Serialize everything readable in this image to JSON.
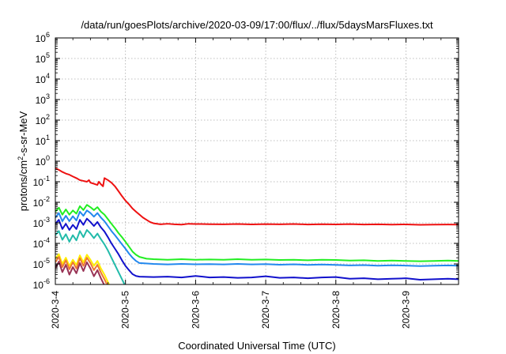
{
  "chart_data": {
    "type": "line",
    "title": "/data/run/goesPlots/archive/2020-03-09/17:00/flux/../flux/5daysMarsFluxes.txt",
    "xlabel": "Coordinated Universal Time (UTC)",
    "ylabel_parts": {
      "base": "protons/cm",
      "sup": "2",
      "rest": "-s-sr-MeV"
    },
    "y_scale": "log",
    "ylim": [
      1e-06,
      1000000.0
    ],
    "xlim_days": [
      0,
      5.75
    ],
    "x_ticks": [
      {
        "t": 0,
        "label": "2020-3-4"
      },
      {
        "t": 1,
        "label": "2020-3-5"
      },
      {
        "t": 2,
        "label": "2020-3-6"
      },
      {
        "t": 3,
        "label": "2020-3-7"
      },
      {
        "t": 4,
        "label": "2020-3-8"
      },
      {
        "t": 5,
        "label": "2020-3-9"
      }
    ],
    "y_ticks": [
      {
        "exp": -6,
        "label": "10",
        "sup": "-6"
      },
      {
        "exp": -5,
        "label": "10",
        "sup": "-5"
      },
      {
        "exp": -4,
        "label": "10",
        "sup": "-4"
      },
      {
        "exp": -3,
        "label": "10",
        "sup": "-3"
      },
      {
        "exp": -2,
        "label": "10",
        "sup": "-2"
      },
      {
        "exp": -1,
        "label": "10",
        "sup": "-1"
      },
      {
        "exp": 0,
        "label": "10",
        "sup": "0"
      },
      {
        "exp": 1,
        "label": "10",
        "sup": "1"
      },
      {
        "exp": 2,
        "label": "10",
        "sup": "2"
      },
      {
        "exp": 3,
        "label": "10",
        "sup": "3"
      },
      {
        "exp": 4,
        "label": "10",
        "sup": "4"
      },
      {
        "exp": 5,
        "label": "10",
        "sup": "5"
      },
      {
        "exp": 6,
        "label": "10",
        "sup": "6"
      }
    ],
    "grid": true,
    "series": [
      {
        "color": "#ee1111",
        "points": [
          [
            0,
            0.45
          ],
          [
            0.05,
            0.38
          ],
          [
            0.1,
            0.3
          ],
          [
            0.15,
            0.25
          ],
          [
            0.2,
            0.22
          ],
          [
            0.25,
            0.18
          ],
          [
            0.3,
            0.15
          ],
          [
            0.35,
            0.12
          ],
          [
            0.4,
            0.11
          ],
          [
            0.45,
            0.1
          ],
          [
            0.48,
            0.12
          ],
          [
            0.5,
            0.09
          ],
          [
            0.55,
            0.08
          ],
          [
            0.6,
            0.07
          ],
          [
            0.62,
            0.1
          ],
          [
            0.65,
            0.075
          ],
          [
            0.68,
            0.06
          ],
          [
            0.7,
            0.15
          ],
          [
            0.75,
            0.12
          ],
          [
            0.8,
            0.09
          ],
          [
            0.85,
            0.06
          ],
          [
            0.9,
            0.035
          ],
          [
            0.95,
            0.02
          ],
          [
            1.0,
            0.012
          ],
          [
            1.05,
            0.008
          ],
          [
            1.1,
            0.005
          ],
          [
            1.15,
            0.0035
          ],
          [
            1.2,
            0.0025
          ],
          [
            1.25,
            0.0018
          ],
          [
            1.3,
            0.0014
          ],
          [
            1.35,
            0.0011
          ],
          [
            1.4,
            0.00095
          ],
          [
            1.5,
            0.00085
          ],
          [
            1.6,
            0.0009
          ],
          [
            1.7,
            0.00085
          ],
          [
            1.8,
            0.00082
          ],
          [
            1.9,
            0.0009
          ],
          [
            2.0,
            0.00088
          ],
          [
            2.2,
            0.00086
          ],
          [
            2.4,
            0.00085
          ],
          [
            2.6,
            0.00088
          ],
          [
            2.8,
            0.00084
          ],
          [
            3.0,
            0.00087
          ],
          [
            3.2,
            0.00085
          ],
          [
            3.4,
            0.00088
          ],
          [
            3.6,
            0.00083
          ],
          [
            3.8,
            0.00086
          ],
          [
            4.0,
            0.00084
          ],
          [
            4.2,
            0.00087
          ],
          [
            4.4,
            0.00083
          ],
          [
            4.6,
            0.00085
          ],
          [
            4.8,
            0.00082
          ],
          [
            5.0,
            0.00084
          ],
          [
            5.2,
            0.0008
          ],
          [
            5.4,
            0.00082
          ],
          [
            5.6,
            0.00083
          ],
          [
            5.75,
            0.00082
          ]
        ]
      },
      {
        "color": "#22ee22",
        "points": [
          [
            0,
            0.0035
          ],
          [
            0.05,
            0.0055
          ],
          [
            0.1,
            0.0025
          ],
          [
            0.15,
            0.0045
          ],
          [
            0.2,
            0.0025
          ],
          [
            0.25,
            0.004
          ],
          [
            0.3,
            0.0028
          ],
          [
            0.35,
            0.0065
          ],
          [
            0.4,
            0.0042
          ],
          [
            0.45,
            0.0075
          ],
          [
            0.5,
            0.0058
          ],
          [
            0.55,
            0.0042
          ],
          [
            0.6,
            0.0058
          ],
          [
            0.65,
            0.0035
          ],
          [
            0.7,
            0.0025
          ],
          [
            0.75,
            0.0015
          ],
          [
            0.8,
            0.0009
          ],
          [
            0.85,
            0.00055
          ],
          [
            0.9,
            0.00032
          ],
          [
            0.95,
            0.0002
          ],
          [
            1.0,
            0.00012
          ],
          [
            1.05,
            7e-05
          ],
          [
            1.1,
            4e-05
          ],
          [
            1.15,
            2.8e-05
          ],
          [
            1.2,
            2.2e-05
          ],
          [
            1.3,
            1.8e-05
          ],
          [
            1.4,
            1.7e-05
          ],
          [
            1.6,
            1.6e-05
          ],
          [
            1.8,
            1.7e-05
          ],
          [
            2.0,
            1.6e-05
          ],
          [
            2.2,
            1.65e-05
          ],
          [
            2.4,
            1.6e-05
          ],
          [
            2.6,
            1.7e-05
          ],
          [
            2.8,
            1.6e-05
          ],
          [
            3.0,
            1.65e-05
          ],
          [
            3.2,
            1.55e-05
          ],
          [
            3.4,
            1.6e-05
          ],
          [
            3.6,
            1.5e-05
          ],
          [
            3.8,
            1.6e-05
          ],
          [
            4.0,
            1.55e-05
          ],
          [
            4.2,
            1.45e-05
          ],
          [
            4.4,
            1.5e-05
          ],
          [
            4.6,
            1.4e-05
          ],
          [
            4.8,
            1.45e-05
          ],
          [
            5.0,
            1.4e-05
          ],
          [
            5.2,
            1.35e-05
          ],
          [
            5.4,
            1.4e-05
          ],
          [
            5.6,
            1.45e-05
          ],
          [
            5.75,
            1.4e-05
          ]
        ]
      },
      {
        "color": "#2288ee",
        "points": [
          [
            0,
            0.0018
          ],
          [
            0.05,
            0.003
          ],
          [
            0.1,
            0.0012
          ],
          [
            0.15,
            0.0022
          ],
          [
            0.2,
            0.0012
          ],
          [
            0.25,
            0.0021
          ],
          [
            0.3,
            0.0013
          ],
          [
            0.35,
            0.0035
          ],
          [
            0.4,
            0.0022
          ],
          [
            0.45,
            0.004
          ],
          [
            0.5,
            0.003
          ],
          [
            0.55,
            0.002
          ],
          [
            0.6,
            0.003
          ],
          [
            0.65,
            0.0018
          ],
          [
            0.7,
            0.0012
          ],
          [
            0.75,
            0.0007
          ],
          [
            0.8,
            0.0004
          ],
          [
            0.85,
            0.00025
          ],
          [
            0.9,
            0.00015
          ],
          [
            0.95,
            9e-05
          ],
          [
            1.0,
            5.5e-05
          ],
          [
            1.05,
            3.2e-05
          ],
          [
            1.1,
            2e-05
          ],
          [
            1.15,
            1.4e-05
          ],
          [
            1.2,
            1.1e-05
          ],
          [
            1.4,
            1e-05
          ],
          [
            1.6,
            9.5e-06
          ],
          [
            1.8,
            1e-05
          ],
          [
            2.0,
            9.6e-06
          ],
          [
            2.2,
            9.8e-06
          ],
          [
            2.4,
            9.5e-06
          ],
          [
            2.6,
            1e-05
          ],
          [
            2.8,
            9.5e-06
          ],
          [
            3.0,
            9.8e-06
          ],
          [
            3.2,
            9.2e-06
          ],
          [
            3.4,
            9.6e-06
          ],
          [
            3.6,
            9e-06
          ],
          [
            3.8,
            9.4e-06
          ],
          [
            4.0,
            9e-06
          ],
          [
            4.2,
            8.5e-06
          ],
          [
            4.4,
            8.8e-06
          ],
          [
            4.6,
            8.2e-06
          ],
          [
            4.8,
            8.6e-06
          ],
          [
            5.0,
            8.3e-06
          ],
          [
            5.2,
            7.8e-06
          ],
          [
            5.4,
            8.2e-06
          ],
          [
            5.6,
            8.5e-06
          ],
          [
            5.75,
            8.2e-06
          ]
        ]
      },
      {
        "color": "#1111cc",
        "points": [
          [
            0,
            0.0009
          ],
          [
            0.05,
            0.0014
          ],
          [
            0.1,
            0.0005
          ],
          [
            0.15,
            0.0009
          ],
          [
            0.2,
            0.00045
          ],
          [
            0.25,
            0.0008
          ],
          [
            0.3,
            0.0005
          ],
          [
            0.35,
            0.0014
          ],
          [
            0.4,
            0.0008
          ],
          [
            0.45,
            0.0016
          ],
          [
            0.5,
            0.0011
          ],
          [
            0.55,
            0.0007
          ],
          [
            0.6,
            0.0011
          ],
          [
            0.65,
            0.0006
          ],
          [
            0.7,
            0.00038
          ],
          [
            0.75,
            0.0002
          ],
          [
            0.8,
            0.0001
          ],
          [
            0.85,
            5.5e-05
          ],
          [
            0.9,
            3e-05
          ],
          [
            0.95,
            1.5e-05
          ],
          [
            1.0,
            8e-06
          ],
          [
            1.05,
            5e-06
          ],
          [
            1.1,
            3.2e-06
          ],
          [
            1.15,
            2.6e-06
          ],
          [
            1.2,
            2.4e-06
          ],
          [
            1.4,
            2.3e-06
          ],
          [
            1.6,
            2.4e-06
          ],
          [
            1.8,
            2.2e-06
          ],
          [
            2.0,
            2.6e-06
          ],
          [
            2.2,
            2.2e-06
          ],
          [
            2.4,
            2.3e-06
          ],
          [
            2.6,
            2.1e-06
          ],
          [
            2.8,
            2.2e-06
          ],
          [
            3.0,
            2.5e-06
          ],
          [
            3.2,
            2.1e-06
          ],
          [
            3.4,
            2.2e-06
          ],
          [
            3.6,
            2e-06
          ],
          [
            3.8,
            2.2e-06
          ],
          [
            4.0,
            2.3e-06
          ],
          [
            4.2,
            1.9e-06
          ],
          [
            4.4,
            2e-06
          ],
          [
            4.6,
            1.8e-06
          ],
          [
            4.8,
            1.9e-06
          ],
          [
            5.0,
            2e-06
          ],
          [
            5.2,
            1.7e-06
          ],
          [
            5.4,
            1.8e-06
          ],
          [
            5.6,
            1.9e-06
          ],
          [
            5.75,
            1.8e-06
          ]
        ]
      },
      {
        "color": "#22bbaa",
        "points": [
          [
            0,
            0.00025
          ],
          [
            0.05,
            0.0004
          ],
          [
            0.1,
            0.00015
          ],
          [
            0.15,
            0.00028
          ],
          [
            0.2,
            0.00012
          ],
          [
            0.25,
            0.00025
          ],
          [
            0.3,
            0.00014
          ],
          [
            0.35,
            0.0004
          ],
          [
            0.4,
            0.0002
          ],
          [
            0.45,
            0.00045
          ],
          [
            0.5,
            0.0003
          ],
          [
            0.55,
            0.00018
          ],
          [
            0.6,
            0.0003
          ],
          [
            0.65,
            0.00016
          ],
          [
            0.7,
            9e-05
          ],
          [
            0.75,
            4.5e-05
          ],
          [
            0.8,
            2e-05
          ],
          [
            0.85,
            9e-06
          ],
          [
            0.9,
            4e-06
          ],
          [
            0.95,
            1.8e-06
          ],
          [
            1.0,
            8e-07
          ]
        ]
      },
      {
        "color": "#ffee00",
        "points": [
          [
            0,
            1.8e-05
          ],
          [
            0.05,
            3e-05
          ],
          [
            0.1,
            1e-05
          ],
          [
            0.15,
            2e-05
          ],
          [
            0.2,
            8e-06
          ],
          [
            0.25,
            1.6e-05
          ],
          [
            0.3,
            9e-06
          ],
          [
            0.35,
            2.6e-05
          ],
          [
            0.4,
            1.2e-05
          ],
          [
            0.45,
            2.8e-05
          ],
          [
            0.5,
            1.6e-05
          ],
          [
            0.55,
            8e-06
          ],
          [
            0.6,
            1.4e-05
          ],
          [
            0.65,
            6e-06
          ],
          [
            0.7,
            3e-06
          ],
          [
            0.75,
            1.3e-06
          ],
          [
            0.8,
            6e-07
          ]
        ]
      },
      {
        "color": "#ee7733",
        "points": [
          [
            0,
            1.2e-05
          ],
          [
            0.05,
            2.2e-05
          ],
          [
            0.1,
            7e-06
          ],
          [
            0.15,
            1.5e-05
          ],
          [
            0.2,
            5.5e-06
          ],
          [
            0.25,
            1.2e-05
          ],
          [
            0.3,
            6e-06
          ],
          [
            0.35,
            1.9e-05
          ],
          [
            0.4,
            8e-06
          ],
          [
            0.45,
            2e-05
          ],
          [
            0.5,
            1.1e-05
          ],
          [
            0.55,
            5e-06
          ],
          [
            0.6,
            9e-06
          ],
          [
            0.65,
            3.8e-06
          ],
          [
            0.7,
            1.8e-06
          ],
          [
            0.75,
            8e-07
          ]
        ]
      },
      {
        "color": "#993355",
        "points": [
          [
            0,
            6e-06
          ],
          [
            0.05,
            1.3e-05
          ],
          [
            0.1,
            4e-06
          ],
          [
            0.15,
            9e-06
          ],
          [
            0.2,
            3e-06
          ],
          [
            0.25,
            7e-06
          ],
          [
            0.3,
            3.5e-06
          ],
          [
            0.35,
            1.1e-05
          ],
          [
            0.4,
            4.5e-06
          ],
          [
            0.45,
            1.2e-05
          ],
          [
            0.5,
            6e-06
          ],
          [
            0.55,
            2.5e-06
          ],
          [
            0.6,
            5e-06
          ],
          [
            0.65,
            2e-06
          ],
          [
            0.7,
            9e-07
          ]
        ]
      }
    ]
  }
}
